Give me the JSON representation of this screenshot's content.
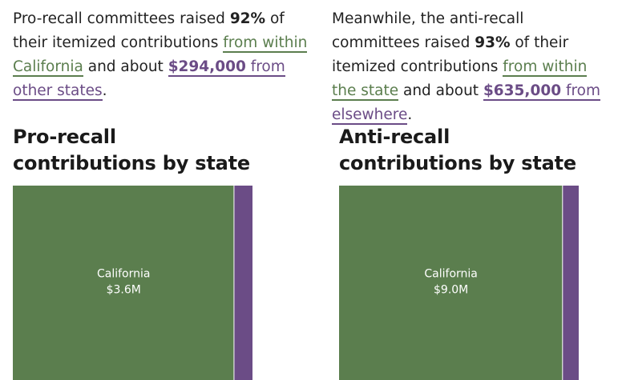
{
  "colors": {
    "in_state": "#5b7e4e",
    "out_of_state": "#6b4c86"
  },
  "left": {
    "text": {
      "a1": "Pro-recall committees raised ",
      "pct": "92%",
      "a2": " of their itemized contributions ",
      "link_in": "from within California",
      "a3": " and about ",
      "amount_out": "$294,000",
      "link_out": " from other states",
      "a4": "."
    },
    "title": "Pro-recall contributions by state"
  },
  "right": {
    "text": {
      "a1": "Meanwhile, the anti-recall committees raised ",
      "pct": "93%",
      "a2": " of their itemized contributions ",
      "link_in": "from within the state",
      "a3": " and about ",
      "amount_out": "$635,000",
      "link_out": " from elsewhere",
      "a4": "."
    },
    "title": "Anti-recall contributions by state"
  },
  "chart_data": [
    {
      "type": "treemap",
      "title": "Pro-recall contributions by state",
      "cells": [
        {
          "label": "California",
          "value_label": "$3.6M",
          "value": 3600000,
          "group": "in_state"
        },
        {
          "label": "",
          "value_label": "",
          "value": 294000,
          "group": "out_of_state"
        }
      ]
    },
    {
      "type": "treemap",
      "title": "Anti-recall contributions by state",
      "cells": [
        {
          "label": "California",
          "value_label": "$9.0M",
          "value": 9000000,
          "group": "in_state"
        },
        {
          "label": "",
          "value_label": "",
          "value": 635000,
          "group": "out_of_state"
        }
      ]
    }
  ]
}
